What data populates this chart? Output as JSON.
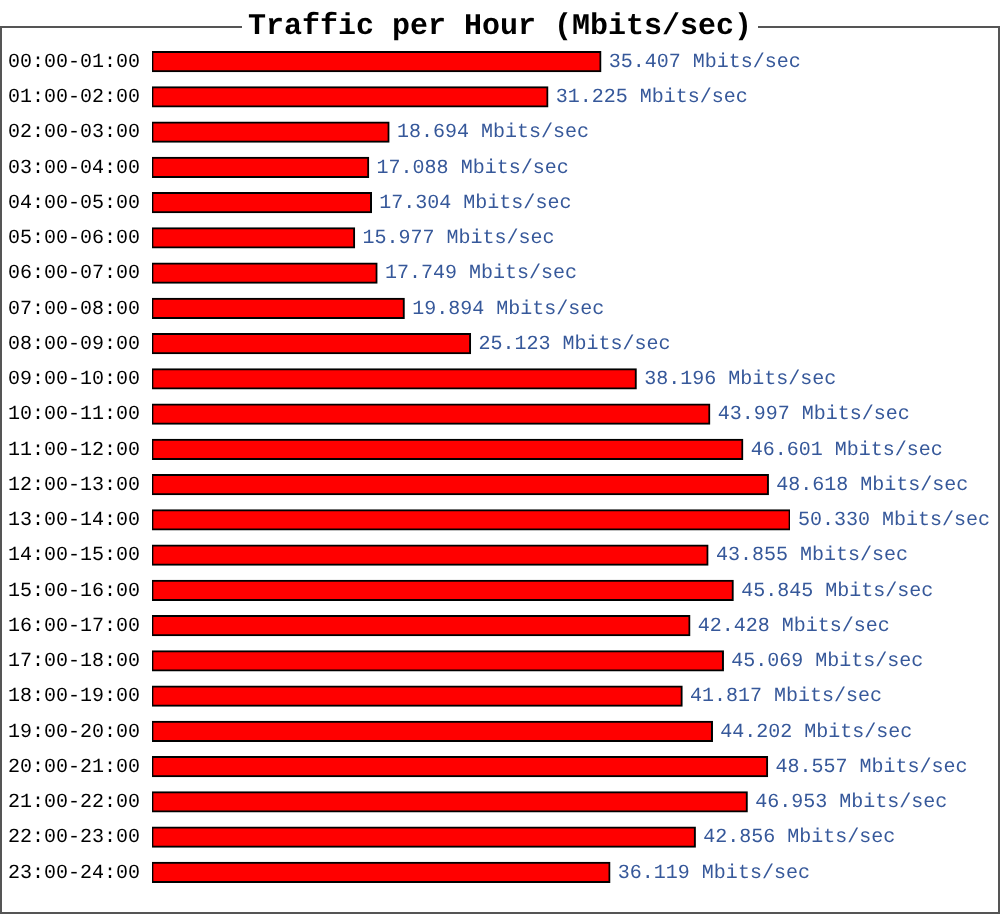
{
  "chart_data": {
    "type": "bar",
    "orientation": "horizontal",
    "title": "Traffic per Hour (Mbits/sec)",
    "categories": [
      "00:00-01:00",
      "01:00-02:00",
      "02:00-03:00",
      "03:00-04:00",
      "04:00-05:00",
      "05:00-06:00",
      "06:00-07:00",
      "07:00-08:00",
      "08:00-09:00",
      "09:00-10:00",
      "10:00-11:00",
      "11:00-12:00",
      "12:00-13:00",
      "13:00-14:00",
      "14:00-15:00",
      "15:00-16:00",
      "16:00-17:00",
      "17:00-18:00",
      "18:00-19:00",
      "19:00-20:00",
      "20:00-21:00",
      "21:00-22:00",
      "22:00-23:00",
      "23:00-24:00"
    ],
    "values": [
      35.407,
      31.225,
      18.694,
      17.088,
      17.304,
      15.977,
      17.749,
      19.894,
      25.123,
      38.196,
      43.997,
      46.601,
      48.618,
      50.33,
      43.855,
      45.845,
      42.428,
      45.069,
      41.817,
      44.202,
      48.557,
      46.953,
      42.856,
      36.119
    ],
    "value_labels": [
      "35.407 Mbits/sec",
      "31.225 Mbits/sec",
      "18.694 Mbits/sec",
      "17.088 Mbits/sec",
      "17.304 Mbits/sec",
      "15.977 Mbits/sec",
      "17.749 Mbits/sec",
      "19.894 Mbits/sec",
      "25.123 Mbits/sec",
      "38.196 Mbits/sec",
      "43.997 Mbits/sec",
      "46.601 Mbits/sec",
      "48.618 Mbits/sec",
      "50.330 Mbits/sec",
      "43.855 Mbits/sec",
      "45.845 Mbits/sec",
      "42.428 Mbits/sec",
      "45.069 Mbits/sec",
      "41.817 Mbits/sec",
      "44.202 Mbits/sec",
      "48.557 Mbits/sec",
      "46.953 Mbits/sec",
      "42.856 Mbits/sec",
      "36.119 Mbits/sec"
    ],
    "color": "#ff0000",
    "tick_labels": "y",
    "grid": false,
    "legend": false
  }
}
